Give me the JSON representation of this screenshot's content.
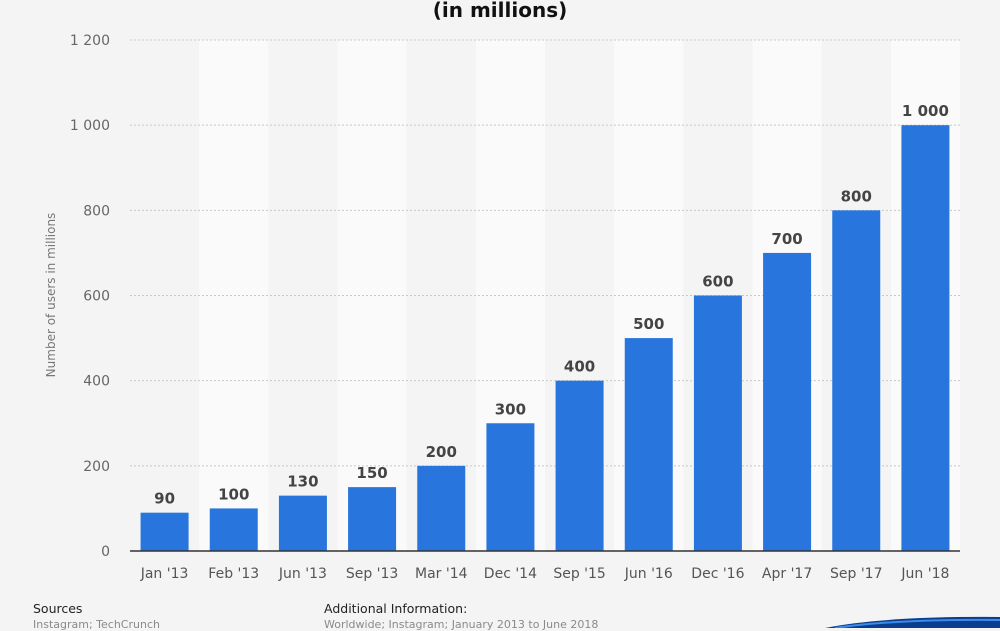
{
  "chart_data": {
    "type": "bar",
    "title": "(in millions)",
    "ylabel": "Number of users in millions",
    "xlabel": "",
    "ylim": [
      0,
      1200
    ],
    "y_ticks": [
      0,
      200,
      400,
      600,
      800,
      1000,
      1200
    ],
    "y_tick_labels": [
      "0",
      "200",
      "400",
      "600",
      "800",
      "1 000",
      "1 200"
    ],
    "categories": [
      "Jan '13",
      "Feb '13",
      "Jun '13",
      "Sep '13",
      "Mar '14",
      "Dec '14",
      "Sep '15",
      "Jun '16",
      "Dec '16",
      "Apr '17",
      "Sep '17",
      "Jun '18"
    ],
    "values": [
      90,
      100,
      130,
      150,
      200,
      300,
      400,
      500,
      600,
      700,
      800,
      1000
    ],
    "data_labels": [
      "90",
      "100",
      "130",
      "150",
      "200",
      "300",
      "400",
      "500",
      "600",
      "700",
      "800",
      "1 000"
    ],
    "grid": true,
    "bar_color": "#2876dd"
  },
  "footer": {
    "sources_heading": "Sources",
    "sources_text": "Instagram; TechCrunch",
    "additional_heading": "Additional Information:",
    "additional_text": "Worldwide; Instagram; January 2013 to June 2018"
  }
}
